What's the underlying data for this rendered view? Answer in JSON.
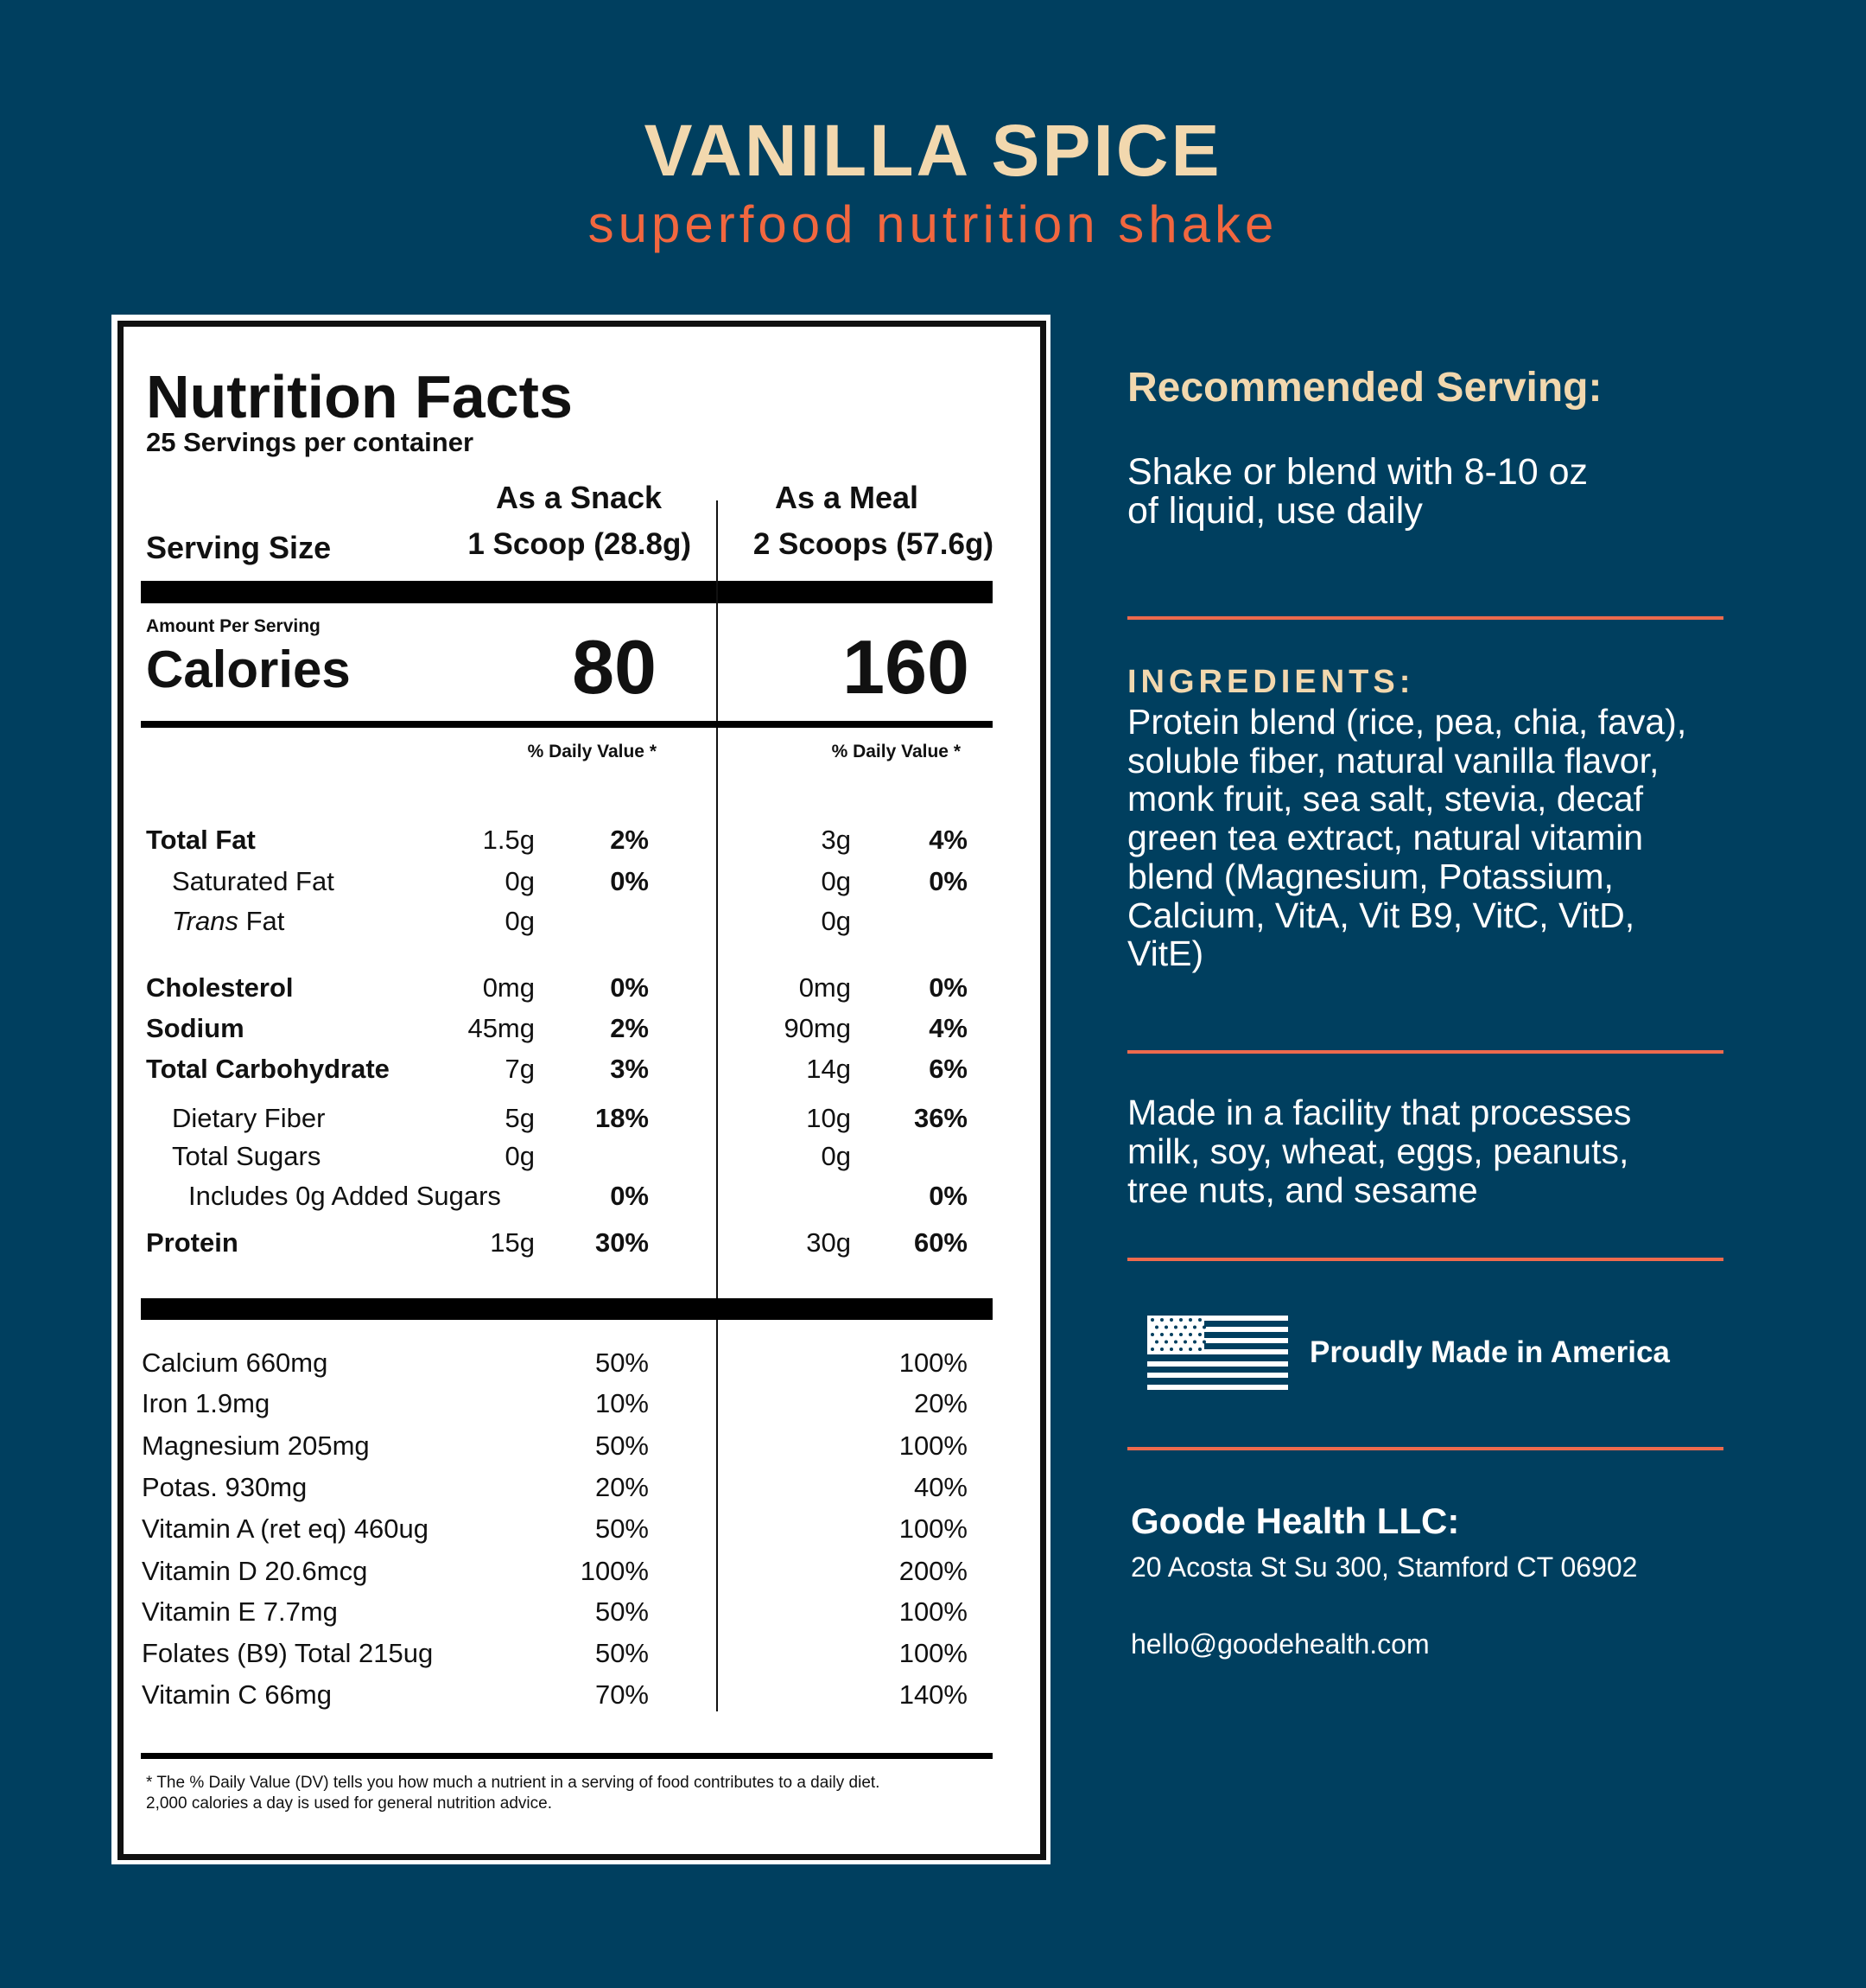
{
  "header": {
    "title": "VANILLA SPICE",
    "subtitle": "superfood nutrition shake"
  },
  "label": {
    "title": "Nutrition Facts",
    "servings_per_container": "25 Servings per container",
    "serving_size_label": "Serving Size",
    "snack": {
      "heading": "As a Snack",
      "size": "1 Scoop (28.8g)",
      "calories": "80",
      "dv_heading": "% Daily Value *"
    },
    "meal": {
      "heading": "As a Meal",
      "size": "2 Scoops (57.6g)",
      "calories": "160",
      "dv_heading": "% Daily Value *"
    },
    "amount_per_serving": "Amount Per Serving",
    "calories_label": "Calories",
    "nutrients": [
      {
        "name": "Total Fat",
        "snack_amount": "1.5g",
        "snack_dv": "2%",
        "meal_amount": "3g",
        "meal_dv": "4%",
        "style": "bold"
      },
      {
        "name": "Saturated Fat",
        "snack_amount": "0g",
        "snack_dv": "0%",
        "meal_amount": "0g",
        "meal_dv": "0%",
        "style": "indent"
      },
      {
        "name_italic": "Trans",
        "name": " Fat",
        "snack_amount": "0g",
        "snack_dv": "",
        "meal_amount": "0g",
        "meal_dv": "",
        "style": "indent"
      },
      {
        "name": "Cholesterol",
        "snack_amount": "0mg",
        "snack_dv": "0%",
        "meal_amount": "0mg",
        "meal_dv": "0%",
        "style": "bold"
      },
      {
        "name": "Sodium",
        "snack_amount": "45mg",
        "snack_dv": "2%",
        "meal_amount": "90mg",
        "meal_dv": "4%",
        "style": "bold"
      },
      {
        "name": "Total Carbohydrate",
        "snack_amount": "7g",
        "snack_dv": "3%",
        "meal_amount": "14g",
        "meal_dv": "6%",
        "style": "bold"
      },
      {
        "name": "Dietary Fiber",
        "snack_amount": "5g",
        "snack_dv": "18%",
        "meal_amount": "10g",
        "meal_dv": "36%",
        "style": "indent"
      },
      {
        "name": "Total Sugars",
        "snack_amount": "0g",
        "snack_dv": "",
        "meal_amount": "0g",
        "meal_dv": "",
        "style": "indent"
      },
      {
        "name": "Includes 0g Added Sugars",
        "snack_amount": "",
        "snack_dv": "0%",
        "meal_amount": "",
        "meal_dv": "0%",
        "style": "indent2"
      },
      {
        "name": "Protein",
        "snack_amount": "15g",
        "snack_dv": "30%",
        "meal_amount": "30g",
        "meal_dv": "60%",
        "style": "bold"
      }
    ],
    "vitamins": [
      {
        "name": "Calcium 660mg",
        "snack_dv": "50%",
        "meal_dv": "100%"
      },
      {
        "name": "Iron 1.9mg",
        "snack_dv": "10%",
        "meal_dv": "20%"
      },
      {
        "name": "Magnesium 205mg",
        "snack_dv": "50%",
        "meal_dv": "100%"
      },
      {
        "name": "Potas. 930mg",
        "snack_dv": "20%",
        "meal_dv": "40%"
      },
      {
        "name": "Vitamin A (ret eq) 460ug",
        "snack_dv": "50%",
        "meal_dv": "100%"
      },
      {
        "name": "Vitamin D 20.6mcg",
        "snack_dv": "100%",
        "meal_dv": "200%"
      },
      {
        "name": "Vitamin E 7.7mg",
        "snack_dv": "50%",
        "meal_dv": "100%"
      },
      {
        "name": "Folates (B9) Total 215ug",
        "snack_dv": "50%",
        "meal_dv": "100%"
      },
      {
        "name": "Vitamin C 66mg",
        "snack_dv": "70%",
        "meal_dv": "140%"
      }
    ],
    "footnote": [
      "* The % Daily Value (DV) tells you how much a nutrient in a serving of food contributes to a daily diet.",
      "2,000 calories a day is used for general nutrition advice."
    ]
  },
  "sidebar": {
    "recommended_heading": "Recommended Serving:",
    "recommended_lines": [
      "Shake or blend with 8-10 oz",
      "of liquid, use daily"
    ],
    "ingredients_heading": "INGREDIENTS:",
    "ingredients_lines": [
      "Protein blend (rice, pea, chia, fava),",
      "soluble fiber, natural vanilla flavor,",
      "monk fruit, sea salt, stevia, decaf",
      "green tea extract, natural vitamin",
      "blend (Magnesium, Potassium,",
      "Calcium, VitA, Vit B9, VitC, VitD,",
      "VitE)"
    ],
    "allergen_lines": [
      "Made in a facility that processes",
      "milk, soy, wheat, eggs, peanuts,",
      "tree nuts, and sesame"
    ],
    "made_in": "Proudly Made in America",
    "flag_icon": "us-flag-icon",
    "company": "Goode Health LLC:",
    "address": "20 Acosta St Su 300, Stamford CT 06902",
    "email": "hello@goodehealth.com"
  },
  "colors": {
    "background": "#003f5f",
    "cream": "#f2d8ae",
    "orange": "#f2673f",
    "divider": "#ee6a4d"
  }
}
